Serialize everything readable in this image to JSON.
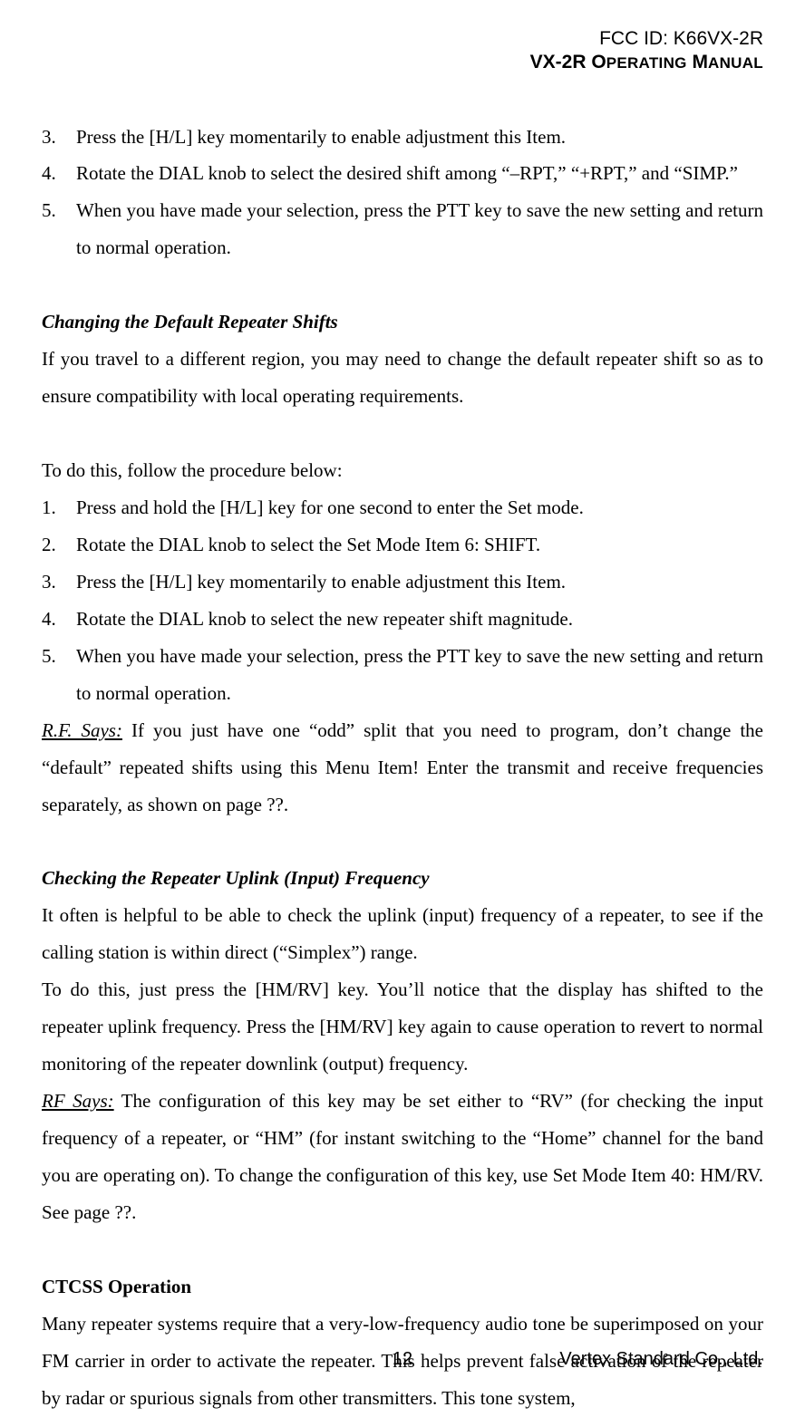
{
  "header": {
    "fcc": "FCC ID: K66VX-2R",
    "manual_model": "VX-2R ",
    "manual_word1": "O",
    "manual_word1_rest": "PERATING",
    "manual_word2": " M",
    "manual_word2_rest": "ANUAL"
  },
  "top_list": {
    "n3": "3.",
    "t3": "Press the [H/L] key momentarily to enable adjustment this Item.",
    "n4": "4.",
    "t4": "Rotate the DIAL knob to select the desired shift among “–RPT,” “+RPT,” and “SIMP.”",
    "n5": "5.",
    "t5": "When you have made your selection, press the PTT key to save the new setting and return to normal operation."
  },
  "sec1": {
    "head": "Changing the Default Repeater Shifts",
    "p1": "If you travel to a different region, you may need to change the default repeater shift so as to ensure compatibility with local operating requirements.",
    "p2": "To do this, follow the procedure below:",
    "list": {
      "n1": "1.",
      "t1": "Press and hold the [H/L] key for one second to enter the Set mode.",
      "n2": "2.",
      "t2": "Rotate the DIAL knob to select the Set Mode Item 6: SHIFT.",
      "n3": "3.",
      "t3": "Press the [H/L] key momentarily to enable adjustment this Item.",
      "n4": "4.",
      "t4": "Rotate the DIAL knob to select the new repeater shift magnitude.",
      "n5": "5.",
      "t5": "When you have made your selection, press the PTT key to save the new setting and return to normal operation."
    },
    "rf_label": "R.F. Says:",
    "rf_body": " If you just have one “odd” split that you need to program, don’t change the “default” repeated shifts using this Menu Item! Enter the transmit and receive frequencies separately, as shown on page ??."
  },
  "sec2": {
    "head": "Checking the Repeater Uplink (Input) Frequency",
    "p1": "It often is helpful to be able to check the uplink (input) frequency of a repeater, to see if the calling station is within direct (“Simplex”) range.",
    "p2": "To do this, just press the [HM/RV] key. You’ll notice that the display has shifted to the repeater uplink frequency. Press the [HM/RV] key again to cause operation to revert to normal monitoring of the repeater downlink (output) frequency.",
    "rf_label": "RF Says:",
    "rf_body": " The configuration of this key may be set either to “RV” (for checking the input frequency of a repeater, or “HM” (for instant switching to the “Home” channel for the band you are operating on). To change the configuration of this key, use Set Mode Item 40: HM/RV. See page ??."
  },
  "sec3": {
    "head": "CTCSS Operation",
    "p1": "Many repeater systems require that a very-low-frequency audio tone be superimposed on your FM carrier in order to activate the repeater. This helps prevent false activation of the repeater by radar or spurious signals from other transmitters. This tone system,"
  },
  "footer": {
    "page": "12",
    "company": "Vertex Standard Co., Ltd."
  },
  "colors": {
    "background": "#ffffff",
    "text": "#000000"
  }
}
